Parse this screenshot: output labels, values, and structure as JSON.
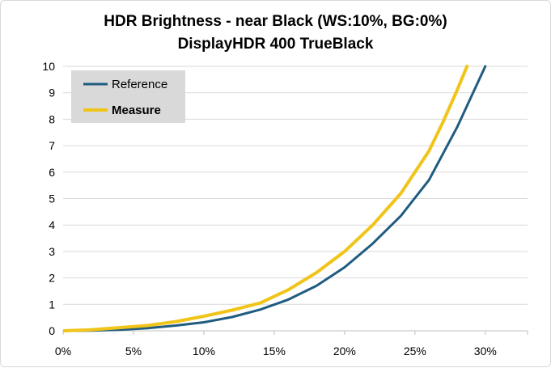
{
  "chart_data": {
    "type": "line",
    "title": "HDR Brightness - near Black (WS:10%, BG:0%)",
    "subtitle": "DisplayHDR 400 TrueBlack",
    "xlabel": "",
    "ylabel": "",
    "xlim": [
      0,
      0.33
    ],
    "ylim": [
      0,
      10
    ],
    "grid": {
      "horizontal": true,
      "vertical": false
    },
    "legend_position": "top-left",
    "x_tick_labels": [
      "0%",
      "5%",
      "10%",
      "15%",
      "20%",
      "25%",
      "30%"
    ],
    "x_ticks": [
      0,
      0.05,
      0.1,
      0.15,
      0.2,
      0.25,
      0.3
    ],
    "y_tick_labels": [
      "0",
      "1",
      "2",
      "3",
      "4",
      "5",
      "6",
      "7",
      "8",
      "9",
      "10"
    ],
    "y_ticks": [
      0,
      1,
      2,
      3,
      4,
      5,
      6,
      7,
      8,
      9,
      10
    ],
    "series": [
      {
        "name": "Reference",
        "color": "#1f5c80",
        "bold": false,
        "x": [
          0,
          0.02,
          0.04,
          0.06,
          0.08,
          0.1,
          0.12,
          0.14,
          0.16,
          0.18,
          0.2,
          0.22,
          0.24,
          0.26,
          0.28,
          0.3
        ],
        "y": [
          0,
          0.01,
          0.04,
          0.1,
          0.2,
          0.32,
          0.52,
          0.8,
          1.18,
          1.7,
          2.4,
          3.3,
          4.35,
          5.7,
          7.7,
          10.0
        ]
      },
      {
        "name": "Measure",
        "color": "#f0c419",
        "bold": true,
        "x": [
          0,
          0.02,
          0.04,
          0.06,
          0.08,
          0.1,
          0.12,
          0.14,
          0.16,
          0.18,
          0.2,
          0.22,
          0.24,
          0.26,
          0.27,
          0.28,
          0.287
        ],
        "y": [
          0,
          0.04,
          0.12,
          0.2,
          0.35,
          0.55,
          0.78,
          1.05,
          1.55,
          2.2,
          3.0,
          4.0,
          5.2,
          6.8,
          7.9,
          9.1,
          10.0
        ]
      }
    ]
  }
}
